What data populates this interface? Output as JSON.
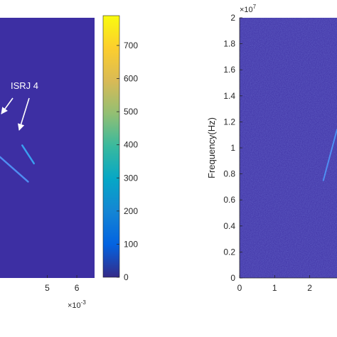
{
  "colors": {
    "plot_background": "#3d2fa3",
    "line_bright": "#3aa0f0",
    "line_light": "#4f8ef2",
    "annotation": "#ffffff",
    "axis": "#262626"
  },
  "colormap": "parula",
  "chart_data": [
    {
      "type": "heatmap",
      "panel": "left",
      "xlabel": "",
      "ylabel": "",
      "x_ticks": [
        "5",
        "6"
      ],
      "x_exponent_label": "×10",
      "x_exponent_power": "-3",
      "xlim": [
        3.4,
        6.6
      ],
      "ylim": [
        0,
        2
      ],
      "colorbar": {
        "ticks": [
          "0",
          "100",
          "200",
          "300",
          "400",
          "500",
          "600",
          "700"
        ],
        "tick_values": [
          0,
          100,
          200,
          300,
          400,
          500,
          600,
          700
        ],
        "range": [
          0,
          790
        ]
      },
      "annotation": {
        "text": "ISRJ 4",
        "arrows": 2
      },
      "segments": [
        {
          "x": [
            4.15,
            4.55
          ],
          "y": [
            1.02,
            0.88
          ],
          "intensity": 260
        },
        {
          "x": [
            3.4,
            4.35
          ],
          "y": [
            0.93,
            0.74
          ],
          "intensity": 230
        }
      ]
    },
    {
      "type": "heatmap",
      "panel": "right",
      "ylabel": "Frequency(Hz)",
      "y_exponent_label": "×10",
      "y_exponent_power": "7",
      "y_ticks": [
        "0",
        "0.2",
        "0.4",
        "0.6",
        "0.8",
        "1",
        "1.2",
        "1.4",
        "1.6",
        "1.8",
        "2"
      ],
      "ylim": [
        0,
        2
      ],
      "x_ticks": [
        "0",
        "1",
        "2"
      ],
      "xlim": [
        0,
        2.78
      ],
      "segments": [
        {
          "x": [
            2.39,
            2.78
          ],
          "y": [
            0.75,
            1.14
          ],
          "intensity": 180
        }
      ]
    }
  ]
}
